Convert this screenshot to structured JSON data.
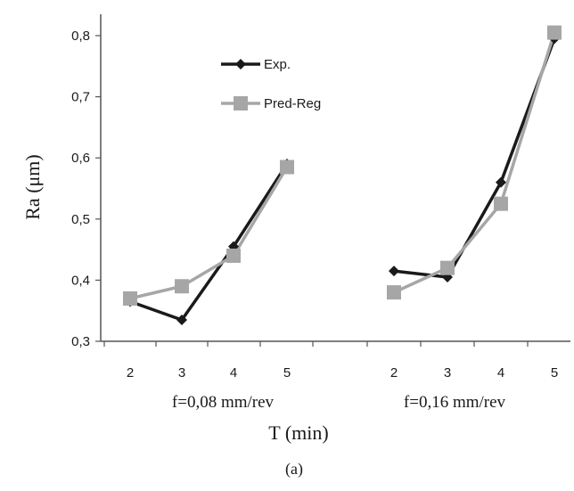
{
  "chart_data": {
    "type": "line",
    "ylabel": "Ra (μm)",
    "xlabel": "T (min)",
    "caption": "(a)",
    "ylim": [
      0.3,
      0.8
    ],
    "yticks": [
      0.3,
      0.4,
      0.5,
      0.6,
      0.7,
      0.8
    ],
    "ytick_labels": [
      "0,3",
      "0,4",
      "0,5",
      "0,6",
      "0,7",
      "0,8"
    ],
    "grid": false,
    "legend_position": "top-center",
    "groups": [
      {
        "label": "f=0,08 mm/rev",
        "x": [
          2,
          3,
          4,
          5
        ],
        "x_labels": [
          "2",
          "3",
          "4",
          "5"
        ]
      },
      {
        "label": "f=0,16 mm/rev",
        "x": [
          2,
          3,
          4,
          5
        ],
        "x_labels": [
          "2",
          "3",
          "4",
          "5"
        ]
      }
    ],
    "series": [
      {
        "name": "Exp.",
        "color": "#1a1a1a",
        "marker": "diamond",
        "values": [
          [
            0.365,
            0.335,
            0.455,
            0.59
          ],
          [
            0.415,
            0.405,
            0.56,
            0.795
          ]
        ]
      },
      {
        "name": "Pred-Reg",
        "color": "#a6a6a6",
        "marker": "square",
        "values": [
          [
            0.37,
            0.39,
            0.44,
            0.585
          ],
          [
            0.38,
            0.42,
            0.525,
            0.805
          ]
        ]
      }
    ]
  }
}
